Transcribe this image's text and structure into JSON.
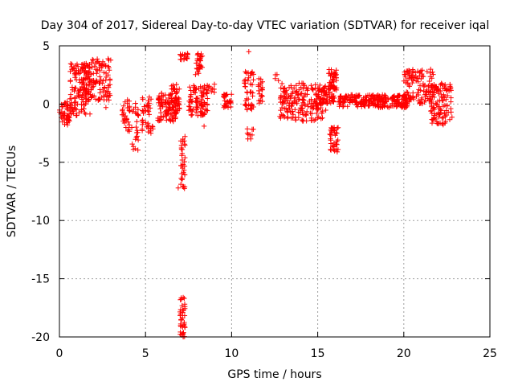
{
  "chart_data": {
    "type": "scatter",
    "title": "Day 304 of 2017, Sidereal Day-to-day VTEC variation (SDTVAR) for receiver iqal",
    "xlabel": "GPS time / hours",
    "ylabel": "SDTVAR / TECUs",
    "xlim": [
      0,
      25
    ],
    "ylim": [
      -20,
      5
    ],
    "xticks": [
      0,
      5,
      10,
      15,
      20,
      25
    ],
    "yticks": [
      5,
      0,
      -5,
      -10,
      -15,
      -20
    ],
    "grid": true,
    "marker": "+",
    "series": [
      {
        "name": "SDTVAR",
        "color": "#ff0000",
        "clusters": [
          {
            "x": [
              0.0,
              0.7
            ],
            "y": [
              -1.8,
              0.2
            ],
            "n": 50
          },
          {
            "x": [
              0.6,
              1.8
            ],
            "y": [
              -1.0,
              3.5
            ],
            "n": 130
          },
          {
            "x": [
              1.4,
              3.0
            ],
            "y": [
              0.3,
              3.9
            ],
            "n": 120
          },
          {
            "x": [
              3.6,
              4.1
            ],
            "y": [
              -2.5,
              0.5
            ],
            "n": 30
          },
          {
            "x": [
              4.2,
              4.6
            ],
            "y": [
              -4.0,
              0.2
            ],
            "n": 25
          },
          {
            "x": [
              4.8,
              5.5
            ],
            "y": [
              -2.5,
              0.8
            ],
            "n": 40
          },
          {
            "x": [
              5.7,
              6.8
            ],
            "y": [
              -1.5,
              1.0
            ],
            "n": 90
          },
          {
            "x": [
              6.5,
              7.0
            ],
            "y": [
              -1.5,
              1.8
            ],
            "n": 45
          },
          {
            "x": [
              7.0,
              7.3
            ],
            "y": [
              -7.5,
              -2.5
            ],
            "n": 35
          },
          {
            "x": [
              7.0,
              7.3
            ],
            "y": [
              -20.0,
              -16.5
            ],
            "n": 40
          },
          {
            "x": [
              7.0,
              7.5
            ],
            "y": [
              3.8,
              4.4
            ],
            "n": 20
          },
          {
            "x": [
              7.5,
              8.6
            ],
            "y": [
              -1.0,
              1.6
            ],
            "n": 90
          },
          {
            "x": [
              7.9,
              8.3
            ],
            "y": [
              2.5,
              4.5
            ],
            "n": 30
          },
          {
            "x": [
              8.5,
              9.0
            ],
            "y": [
              1.0,
              1.8
            ],
            "n": 10
          },
          {
            "x": [
              9.5,
              10.0
            ],
            "y": [
              -0.3,
              1.0
            ],
            "n": 30
          },
          {
            "x": [
              10.7,
              11.3
            ],
            "y": [
              -0.5,
              2.8
            ],
            "n": 45
          },
          {
            "x": [
              10.9,
              11.3
            ],
            "y": [
              -3.0,
              -2.0
            ],
            "n": 10
          },
          {
            "x": [
              11.5,
              11.8
            ],
            "y": [
              0.0,
              2.3
            ],
            "n": 20
          },
          {
            "x": [
              12.5,
              12.8
            ],
            "y": [
              2.0,
              2.6
            ],
            "n": 4
          },
          {
            "x": [
              12.8,
              15.3
            ],
            "y": [
              -1.5,
              1.8
            ],
            "n": 180
          },
          {
            "x": [
              14.9,
              15.5
            ],
            "y": [
              -0.8,
              0.5
            ],
            "n": 30
          },
          {
            "x": [
              15.3,
              16.0
            ],
            "y": [
              0.0,
              1.6
            ],
            "n": 50
          },
          {
            "x": [
              15.6,
              16.1
            ],
            "y": [
              1.2,
              3.0
            ],
            "n": 40
          },
          {
            "x": [
              15.7,
              16.2
            ],
            "y": [
              -4.2,
              -2.0
            ],
            "n": 40
          },
          {
            "x": [
              16.2,
              20.2
            ],
            "y": [
              -0.3,
              0.8
            ],
            "n": 260
          },
          {
            "x": [
              20.0,
              21.8
            ],
            "y": [
              0.0,
              3.0
            ],
            "n": 120
          },
          {
            "x": [
              21.5,
              22.8
            ],
            "y": [
              -1.8,
              1.8
            ],
            "n": 110
          }
        ],
        "points": [
          {
            "x": 11.0,
            "y": 4.5
          },
          {
            "x": 2.7,
            "y": -0.3
          },
          {
            "x": 6.9,
            "y": -7.2
          },
          {
            "x": 8.4,
            "y": -1.9
          },
          {
            "x": 9.0,
            "y": 1.7
          }
        ]
      }
    ]
  }
}
